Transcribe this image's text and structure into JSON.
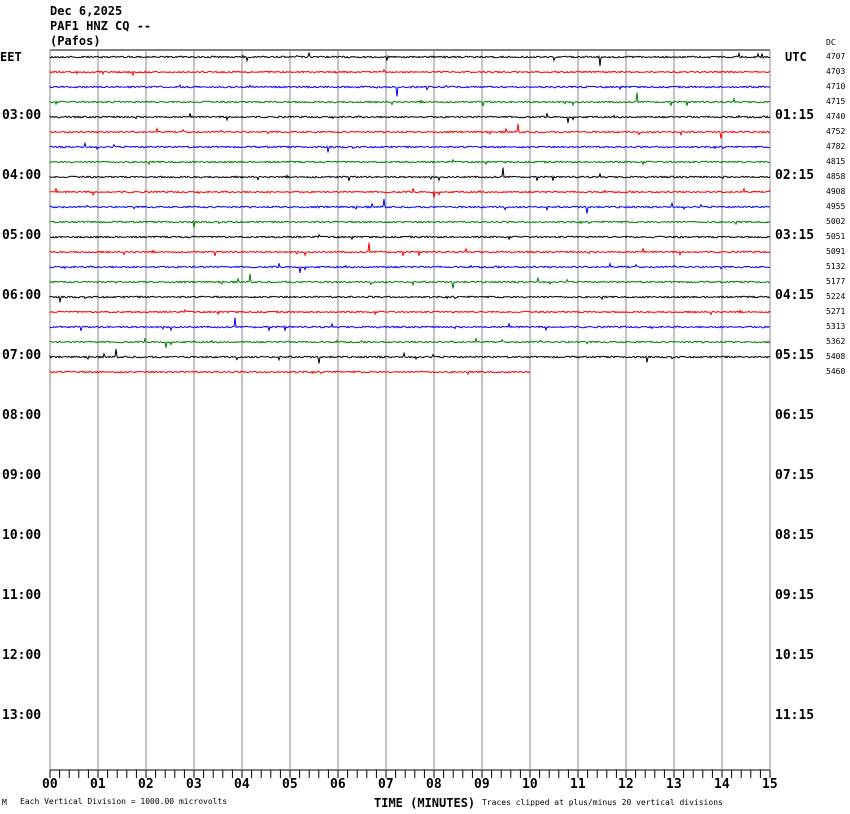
{
  "header": {
    "date": "Dec 6,2025",
    "station": "PAF1 HNZ CQ --",
    "location": "(Pafos)"
  },
  "left_tz": "EET",
  "right_tz": "UTC",
  "dc_label": "DC",
  "chart_data": {
    "type": "line",
    "xlabel": "TIME (MINUTES)",
    "xlim": [
      0,
      15
    ],
    "x_ticks": [
      "00",
      "01",
      "02",
      "03",
      "04",
      "05",
      "06",
      "07",
      "08",
      "09",
      "10",
      "11",
      "12",
      "13",
      "14",
      "15"
    ],
    "left_hour_labels": [
      "03:00",
      "04:00",
      "05:00",
      "06:00",
      "07:00",
      "08:00",
      "09:00",
      "10:00",
      "11:00",
      "12:00",
      "13:00"
    ],
    "right_hour_labels": [
      "01:15",
      "02:15",
      "03:15",
      "04:15",
      "05:15",
      "06:15",
      "07:15",
      "08:15",
      "09:15",
      "10:15",
      "11:15"
    ],
    "trace_colors": [
      "#000000",
      "#ff0000",
      "#0000ff",
      "#008000"
    ],
    "trace_count": 22,
    "last_trace_end_minutes": 10,
    "dc_offsets": [
      "4707",
      "4703",
      "4710",
      "4715",
      "4740",
      "4752",
      "4782",
      "4815",
      "4858",
      "4908",
      "4955",
      "5002",
      "5051",
      "5091",
      "5132",
      "5177",
      "5224",
      "5271",
      "5313",
      "5362",
      "5408",
      "5460"
    ]
  },
  "footer": {
    "scale": "Each Vertical Division = 1000.00 microvolts",
    "clip": "Traces clipped at plus/minus 20 vertical divisions",
    "corner": "M"
  }
}
